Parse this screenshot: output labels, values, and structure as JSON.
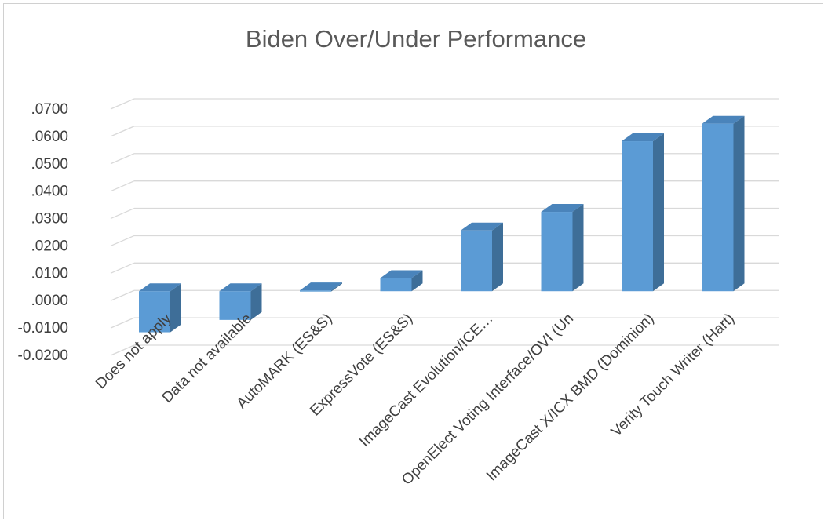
{
  "chart_data": {
    "type": "bar",
    "title": "Biden Over/Under Performance",
    "categories": [
      "Does not apply",
      "Data not available",
      "AutoMARK (ES&S)",
      "ExpressVote (ES&S)",
      "ImageCast Evolution/ICE…",
      "OpenElect Voting Interface/OVI (Un",
      "ImageCast X/ICX BMD (Dominion)",
      "Verity Touch Writer (Hart)"
    ],
    "values": [
      -0.015,
      -0.0105,
      0.0003,
      0.0048,
      0.0222,
      0.029,
      0.0548,
      0.0612
    ],
    "ylim": [
      -0.02,
      0.07
    ],
    "yticks": [
      -0.02,
      -0.01,
      0,
      0.01,
      0.02,
      0.03,
      0.04,
      0.05,
      0.06,
      0.07
    ],
    "ytick_labels": [
      "-0.0200",
      "-0.0100",
      ".0000",
      ".0100",
      ".0200",
      ".0300",
      ".0400",
      ".0500",
      ".0600",
      ".0700"
    ],
    "grid": true,
    "legend": "none",
    "colors": {
      "bar_front": "#5b9bd5",
      "bar_side": "#3e6e98",
      "bar_top": "#4a84bb",
      "grid": "#d9d9d9",
      "text": "#404040",
      "title": "#595959"
    }
  }
}
